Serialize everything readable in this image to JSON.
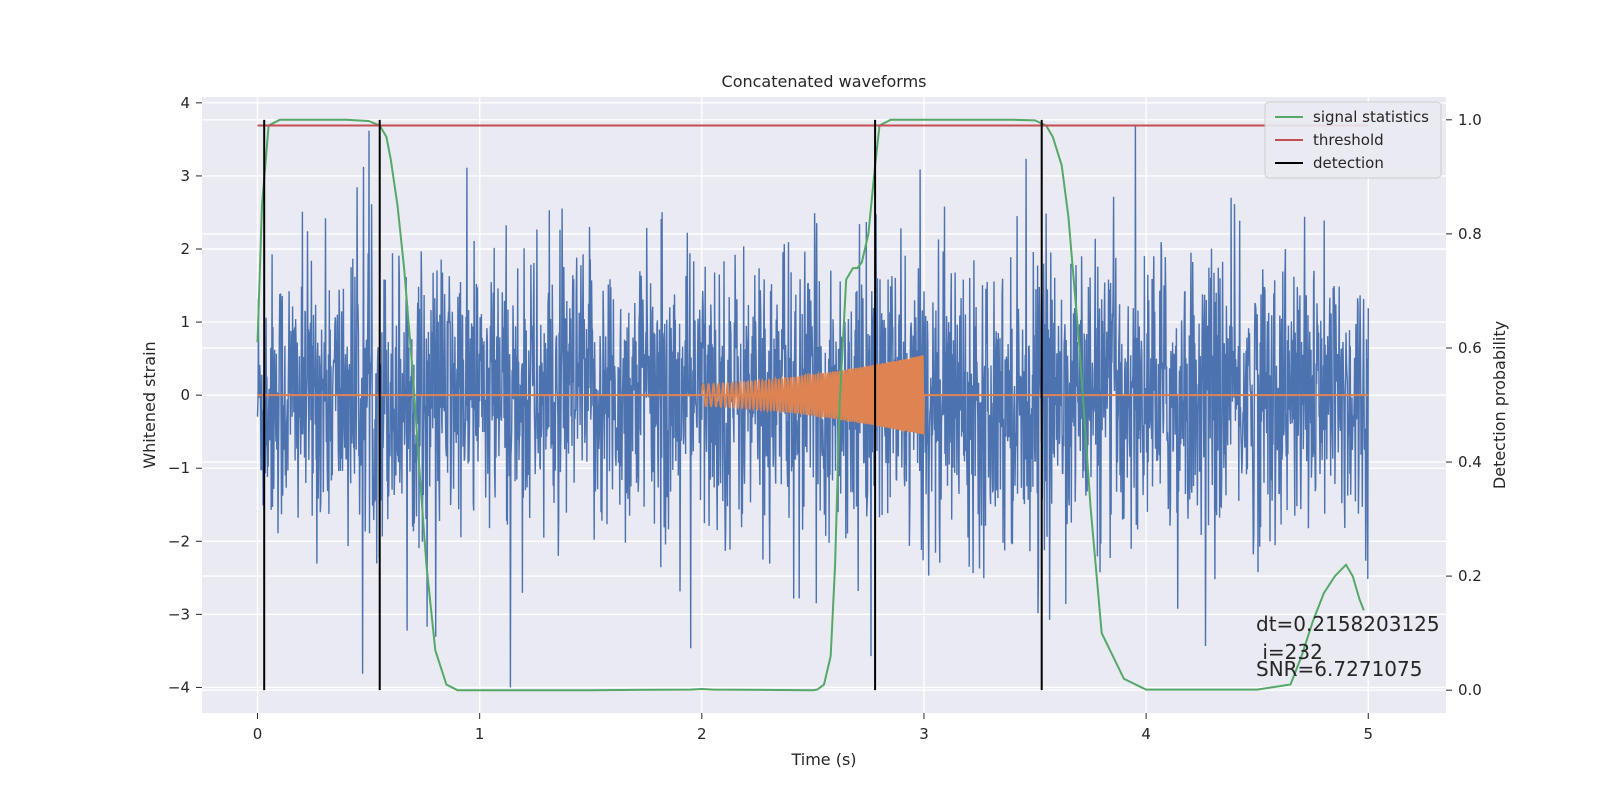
{
  "chart_data": {
    "type": "line",
    "title": "Concatenated waveforms",
    "xlabel": "Time (s)",
    "ylabel": "Whitened strain",
    "y2label": "Detection probability",
    "xlim": [
      -0.25,
      5.35
    ],
    "ylim": [
      -4.35,
      4.08
    ],
    "y2lim": [
      -0.04,
      1.04
    ],
    "xticks": [
      0,
      1,
      2,
      3,
      4,
      5
    ],
    "xtick_labels": [
      "0",
      "1",
      "2",
      "3",
      "4",
      "5"
    ],
    "yticks": [
      -4,
      -3,
      -2,
      -1,
      0,
      1,
      2,
      3,
      4
    ],
    "ytick_labels": [
      "−4",
      "−3",
      "−2",
      "−1",
      "0",
      "1",
      "2",
      "3",
      "4"
    ],
    "y2ticks": [
      0.0,
      0.2,
      0.4,
      0.6,
      0.8,
      1.0
    ],
    "y2tick_labels": [
      "0.0",
      "0.2",
      "0.4",
      "0.6",
      "0.8",
      "1.0"
    ],
    "grid": true,
    "legend_position": "top-right",
    "colors": {
      "background": "#eaeaf2",
      "grid": "#ffffff",
      "strain": "#4c72b0",
      "template": "#dd8452",
      "signal_statistics": "#55a868",
      "threshold": "#c44e52",
      "detection": "#000000"
    },
    "series": [
      {
        "name": "signal statistics",
        "axis": "right",
        "x": [
          0.0,
          0.02,
          0.05,
          0.1,
          0.2,
          0.3,
          0.4,
          0.5,
          0.55,
          0.58,
          0.6,
          0.63,
          0.66,
          0.7,
          0.73,
          0.76,
          0.8,
          0.85,
          0.9,
          1.0,
          1.5,
          1.95,
          2.0,
          2.05,
          2.5,
          2.52,
          2.55,
          2.58,
          2.6,
          2.62,
          2.65,
          2.68,
          2.7,
          2.72,
          2.75,
          2.78,
          2.8,
          2.85,
          3.0,
          3.2,
          3.4,
          3.5,
          3.55,
          3.58,
          3.62,
          3.65,
          3.7,
          3.75,
          3.8,
          3.9,
          4.0,
          4.5,
          4.65,
          4.7,
          4.75,
          4.8,
          4.85,
          4.9,
          4.93,
          4.96,
          4.98
        ],
        "values": [
          0.61,
          0.85,
          0.99,
          1.0,
          1.0,
          1.0,
          1.0,
          0.998,
          0.99,
          0.97,
          0.93,
          0.85,
          0.74,
          0.55,
          0.38,
          0.22,
          0.07,
          0.01,
          0.0,
          0.0,
          0.0,
          0.001,
          0.002,
          0.001,
          0.0,
          0.001,
          0.01,
          0.06,
          0.22,
          0.5,
          0.72,
          0.74,
          0.74,
          0.75,
          0.8,
          0.92,
          0.99,
          1.0,
          1.0,
          1.0,
          1.0,
          0.999,
          0.99,
          0.97,
          0.92,
          0.83,
          0.6,
          0.32,
          0.1,
          0.02,
          0.001,
          0.001,
          0.01,
          0.06,
          0.12,
          0.17,
          0.2,
          0.22,
          0.2,
          0.16,
          0.14
        ]
      },
      {
        "name": "threshold",
        "axis": "right",
        "x": [
          0.0,
          5.0
        ],
        "values": [
          0.99,
          0.99
        ]
      }
    ],
    "strain_noise": {
      "x_range": [
        0.0,
        5.0
      ],
      "typical_amplitude": 1.0,
      "peak_max": 3.7,
      "peak_min": -4.0
    },
    "template_chirp": {
      "x_range": [
        2.0,
        3.0
      ],
      "amplitude_start": 0.15,
      "amplitude_end": 0.55
    },
    "template_baseline": {
      "x_range": [
        0.0,
        5.0
      ],
      "value": 0.0
    },
    "detections": [
      0.03,
      0.55,
      2.78,
      3.53
    ],
    "legend": [
      {
        "label": "signal statistics",
        "color": "#55a868"
      },
      {
        "label": "threshold",
        "color": "#c44e52"
      },
      {
        "label": "detection",
        "color": "#000000"
      }
    ],
    "annotations": {
      "dt": "dt=0.2158203125",
      "i": " i=232",
      "snr": "SNR=6.7271075"
    }
  }
}
